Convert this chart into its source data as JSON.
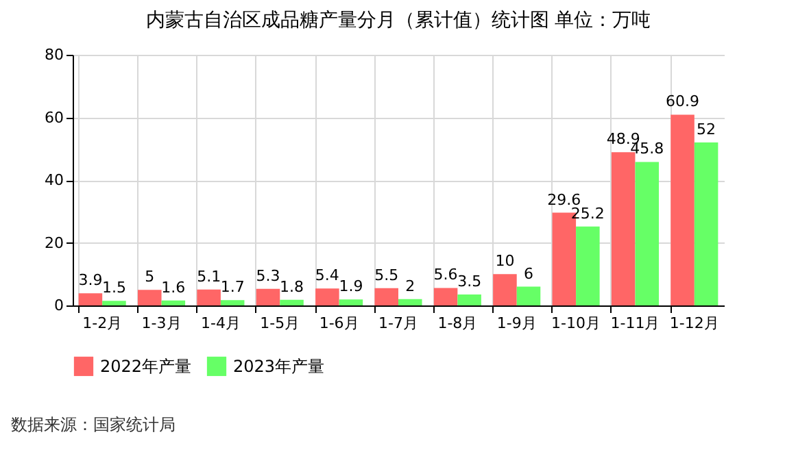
{
  "chart_data": {
    "type": "bar",
    "title": "内蒙古自治区成品糖产量分月（累计值）统计图 单位：万吨",
    "categories": [
      "1-2月",
      "1-3月",
      "1-4月",
      "1-5月",
      "1-6月",
      "1-7月",
      "1-8月",
      "1-9月",
      "1-10月",
      "1-11月",
      "1-12月"
    ],
    "series": [
      {
        "name": "2022年产量",
        "color": "#ff6666",
        "values": [
          3.9,
          5,
          5.1,
          5.3,
          5.4,
          5.5,
          5.6,
          10,
          29.6,
          48.9,
          60.9
        ]
      },
      {
        "name": "2023年产量",
        "color": "#66ff66",
        "values": [
          1.5,
          1.6,
          1.7,
          1.8,
          1.9,
          2,
          3.5,
          6,
          25.2,
          45.8,
          52
        ]
      }
    ],
    "ylim": [
      0,
      80
    ],
    "yticks": [
      0,
      20,
      40,
      60,
      80
    ],
    "grid": true,
    "legend": "bottom",
    "data_labels": true,
    "annotations": [
      "数据来源：国家统计局"
    ]
  }
}
